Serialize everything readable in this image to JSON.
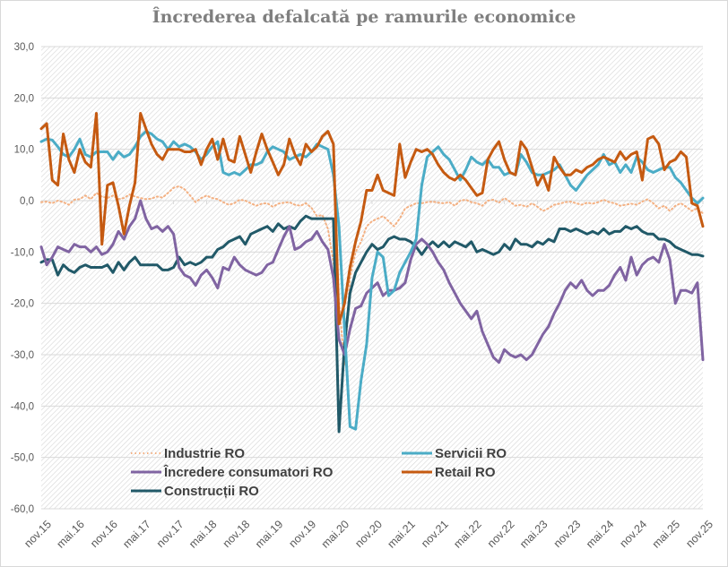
{
  "chart_data": {
    "type": "line",
    "title": "Încrederea defalcată pe ramurile economice",
    "xlabel": "",
    "ylabel": "",
    "ylim": [
      -60,
      30
    ],
    "yticks": [
      "30,0",
      "20,0",
      "10,0",
      "0,0",
      "-10,0",
      "-20,0",
      "-30,0",
      "-40,0",
      "-50,0",
      "-60,0"
    ],
    "ytick_values": [
      30,
      20,
      10,
      0,
      -10,
      -20,
      -30,
      -40,
      -50,
      -60
    ],
    "x_start": "nov.15",
    "x_end": "nov.25",
    "x_frequency": "monthly",
    "xtick_labels": [
      "nov.15",
      "mai.16",
      "nov.16",
      "mai.17",
      "nov.17",
      "mai.18",
      "nov.18",
      "mai.19",
      "nov.19",
      "mai.20",
      "nov.20",
      "mai.21",
      "nov.21",
      "mai.22",
      "nov.22",
      "mai.23",
      "nov.23",
      "mai.24",
      "nov.24",
      "mai.25",
      "nov.25"
    ],
    "xtick_every": 6,
    "grid": true,
    "legend_position": "bottom-left-inside",
    "series": [
      {
        "name": "Industrie RO",
        "color": "#f4b183",
        "style": "dotted",
        "values": [
          -0.3,
          -0.2,
          -0.5,
          0.0,
          -0.3,
          -0.8,
          0.2,
          0.3,
          1.0,
          0.3,
          1.5,
          0.8,
          0.5,
          1.0,
          0.3,
          0.5,
          1.2,
          0.8,
          0.5,
          0.3,
          0.4,
          0.8,
          0.6,
          1.5,
          2.5,
          2.8,
          2.2,
          1.0,
          -0.3,
          0.5,
          1.0,
          0.5,
          0.3,
          -0.3,
          -0.8,
          -0.5,
          0.2,
          0.0,
          -0.5,
          -1.0,
          -0.6,
          -0.5,
          -1.2,
          -0.6,
          -0.4,
          -0.3,
          -0.8,
          -1.0,
          -0.5,
          -1.4,
          -3.0,
          -2.8,
          -5.5,
          -12.0,
          -20.0,
          -32.0,
          -15.0,
          -10.0,
          -8.0,
          -5.0,
          -4.0,
          -3.5,
          -3.0,
          -4.0,
          -5.0,
          -3.5,
          -1.5,
          -1.0,
          -0.5,
          -0.5,
          -0.3,
          -0.2,
          -0.4,
          -0.5,
          -0.3,
          -1.0,
          0.0,
          0.2,
          -0.3,
          -0.5,
          -1.0,
          0.0,
          0.2,
          -0.4,
          0.5,
          -0.2,
          -1.0,
          -0.8,
          -1.2,
          -0.5,
          -1.2,
          -2.0,
          -1.5,
          -0.8,
          -0.6,
          -0.3,
          -0.2,
          -0.5,
          -0.8,
          -0.4,
          -0.6,
          -0.3,
          0.2,
          -0.3,
          -0.5,
          -1.0,
          -0.8,
          -0.6,
          -0.8,
          -0.2,
          0.3,
          -0.5,
          -1.5,
          -1.0,
          -2.0,
          -1.0,
          -0.5,
          -1.2,
          -2.0,
          -1.5,
          -2.5
        ]
      },
      {
        "name": "Servicii RO",
        "color": "#4bacc6",
        "style": "solid",
        "values": [
          11.5,
          12.0,
          11.8,
          10.5,
          9.0,
          8.5,
          10.0,
          12.0,
          9.0,
          8.5,
          9.5,
          9.5,
          9.5,
          8.0,
          9.5,
          8.5,
          9.0,
          10.5,
          12.5,
          13.5,
          13.0,
          12.0,
          11.5,
          10.0,
          11.5,
          10.5,
          11.0,
          10.5,
          9.5,
          8.0,
          9.0,
          10.5,
          11.5,
          5.5,
          5.0,
          5.5,
          5.0,
          6.0,
          7.0,
          7.0,
          7.5,
          9.5,
          10.5,
          10.0,
          9.5,
          8.0,
          8.5,
          9.0,
          8.5,
          9.5,
          11.0,
          10.5,
          10.0,
          5.0,
          -5.0,
          -25.0,
          -44.0,
          -44.5,
          -35.0,
          -28.0,
          -15.0,
          -10.0,
          -11.0,
          -18.5,
          -17.5,
          -14.0,
          -12.0,
          -10.0,
          -7.5,
          3.0,
          8.5,
          9.5,
          10.5,
          9.0,
          8.0,
          6.0,
          4.0,
          6.0,
          8.5,
          7.5,
          7.0,
          8.0,
          6.5,
          6.5,
          5.0,
          5.5,
          5.0,
          9.0,
          7.5,
          5.5,
          5.0,
          5.0,
          5.5,
          6.0,
          7.0,
          5.0,
          3.0,
          2.0,
          3.5,
          5.0,
          6.0,
          7.0,
          9.0,
          7.0,
          7.5,
          5.5,
          7.0,
          5.5,
          8.5,
          7.5,
          6.0,
          5.5,
          6.0,
          6.5,
          6.5,
          4.5,
          3.5,
          2.0,
          0.5,
          -0.5,
          0.5
        ]
      },
      {
        "name": "Încredere consumatori RO",
        "color": "#8064a2",
        "style": "solid",
        "values": [
          -9.0,
          -12.5,
          -11.0,
          -9.0,
          -9.5,
          -10.0,
          -8.5,
          -9.0,
          -9.0,
          -10.0,
          -9.0,
          -10.5,
          -10.0,
          -8.5,
          -6.0,
          -7.5,
          -5.0,
          -3.5,
          0.0,
          -3.5,
          -5.5,
          -5.0,
          -6.0,
          -5.0,
          -6.5,
          -13.0,
          -14.5,
          -15.0,
          -16.5,
          -14.5,
          -13.5,
          -15.0,
          -17.0,
          -13.0,
          -13.5,
          -11.0,
          -12.5,
          -13.5,
          -14.0,
          -14.5,
          -14.0,
          -12.5,
          -12.0,
          -9.5,
          -7.0,
          -5.0,
          -9.5,
          -9.0,
          -8.0,
          -7.5,
          -6.0,
          -8.0,
          -9.5,
          -15.0,
          -27.0,
          -30.0,
          -25.0,
          -21.0,
          -20.5,
          -18.0,
          -17.0,
          -16.0,
          -18.5,
          -17.5,
          -17.5,
          -17.0,
          -16.0,
          -11.5,
          -8.5,
          -7.5,
          -8.5,
          -10.0,
          -12.0,
          -13.5,
          -16.0,
          -18.0,
          -20.0,
          -21.5,
          -23.0,
          -21.5,
          -25.5,
          -28.0,
          -30.5,
          -31.5,
          -29.0,
          -30.0,
          -30.5,
          -30.0,
          -31.0,
          -30.0,
          -28.0,
          -26.0,
          -24.5,
          -22.0,
          -20.0,
          -17.5,
          -16.0,
          -17.0,
          -15.5,
          -17.5,
          -18.5,
          -17.5,
          -17.5,
          -16.5,
          -14.5,
          -13.0,
          -15.5,
          -11.0,
          -14.5,
          -12.5,
          -11.5,
          -11.0,
          -12.0,
          -8.5,
          -11.5,
          -20.0,
          -17.5,
          -17.5,
          -18.0,
          -16.0,
          -31.0
        ]
      },
      {
        "name": "Retail RO",
        "color": "#c55a11",
        "style": "solid",
        "values": [
          14.0,
          15.0,
          4.0,
          3.0,
          13.0,
          8.0,
          5.5,
          10.0,
          7.5,
          6.5,
          17.0,
          -8.5,
          3.0,
          3.5,
          -1.0,
          -6.5,
          -1.0,
          3.5,
          17.0,
          14.0,
          11.0,
          9.0,
          8.0,
          10.0,
          10.0,
          10.0,
          9.5,
          9.5,
          10.0,
          7.0,
          10.0,
          12.0,
          8.0,
          12.0,
          8.0,
          7.5,
          12.5,
          9.0,
          5.5,
          9.5,
          13.0,
          10.0,
          7.5,
          5.0,
          7.0,
          12.0,
          9.0,
          7.0,
          11.0,
          9.5,
          10.5,
          12.5,
          13.5,
          11.0,
          -24.0,
          -20.0,
          -13.0,
          -8.0,
          -4.0,
          2.0,
          2.0,
          5.0,
          2.0,
          1.5,
          1.0,
          11.0,
          4.5,
          7.5,
          10.0,
          9.5,
          10.0,
          9.0,
          7.0,
          5.5,
          4.5,
          4.0,
          5.0,
          4.0,
          2.5,
          1.0,
          1.5,
          8.0,
          10.0,
          11.5,
          8.0,
          5.5,
          5.0,
          11.5,
          10.0,
          6.5,
          3.0,
          5.0,
          2.0,
          8.5,
          6.5,
          5.0,
          5.0,
          6.0,
          5.5,
          6.5,
          7.0,
          8.0,
          8.5,
          8.0,
          7.5,
          9.5,
          8.0,
          9.0,
          9.5,
          4.0,
          12.0,
          12.5,
          11.0,
          6.0,
          7.5,
          8.0,
          9.5,
          8.5,
          -0.5,
          -1.0,
          -5.0
        ]
      },
      {
        "name": "Construcții RO",
        "color": "#215968",
        "style": "solid",
        "values": [
          -12.0,
          -11.5,
          -11.5,
          -14.5,
          -12.5,
          -13.5,
          -14.0,
          -13.0,
          -12.5,
          -13.0,
          -13.0,
          -13.0,
          -12.5,
          -14.0,
          -12.0,
          -13.5,
          -12.0,
          -11.0,
          -12.5,
          -12.5,
          -12.5,
          -12.5,
          -13.5,
          -13.5,
          -13.0,
          -11.0,
          -12.5,
          -12.0,
          -12.5,
          -12.0,
          -11.0,
          -11.0,
          -9.5,
          -9.0,
          -8.0,
          -7.5,
          -7.0,
          -8.5,
          -6.5,
          -6.0,
          -5.5,
          -5.0,
          -6.0,
          -4.5,
          -5.5,
          -5.0,
          -5.5,
          -4.0,
          -3.0,
          -3.5,
          -3.5,
          -3.5,
          -3.5,
          -3.5,
          -45.0,
          -28.0,
          -18.0,
          -14.0,
          -12.0,
          -10.0,
          -8.5,
          -9.5,
          -9.0,
          -7.5,
          -7.0,
          -7.5,
          -7.5,
          -8.0,
          -9.0,
          -10.5,
          -9.0,
          -8.0,
          -9.0,
          -8.0,
          -9.0,
          -8.0,
          -8.5,
          -9.0,
          -8.0,
          -10.0,
          -9.5,
          -10.0,
          -10.5,
          -10.0,
          -8.5,
          -9.5,
          -7.5,
          -8.5,
          -8.5,
          -9.0,
          -8.0,
          -8.5,
          -7.5,
          -8.0,
          -5.5,
          -5.5,
          -6.0,
          -5.5,
          -6.0,
          -6.5,
          -6.0,
          -6.5,
          -5.5,
          -6.5,
          -6.0,
          -6.0,
          -5.0,
          -5.5,
          -5.0,
          -6.0,
          -6.5,
          -6.5,
          -7.5,
          -7.5,
          -8.0,
          -9.0,
          -9.5,
          -10.0,
          -10.5,
          -10.5,
          -10.8
        ]
      }
    ]
  }
}
